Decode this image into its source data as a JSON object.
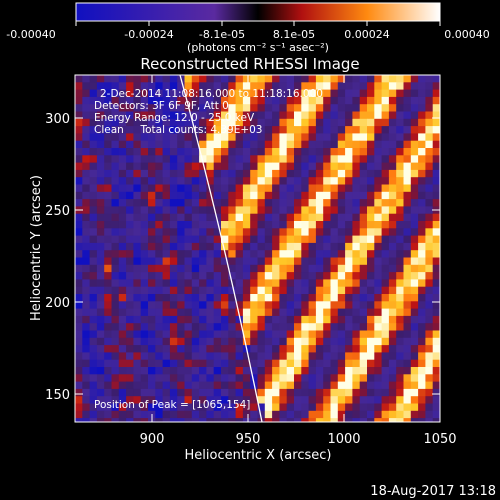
{
  "colorbar": {
    "tick_labels": [
      "-0.00040",
      "-0.00024",
      "-8.1e-05",
      "8.1e-05",
      "0.00024",
      "0.00040"
    ],
    "unit_label": "(photons cm⁻² s⁻¹ asec⁻²)",
    "range": [
      -0.0004,
      0.0004
    ]
  },
  "plot": {
    "title": "Reconstructed RHESSI Image",
    "xlabel": "Heliocentric X (arcsec)",
    "ylabel": "Heliocentric Y (arcsec)",
    "xlim": [
      860,
      1050
    ],
    "ylim": [
      133,
      322
    ],
    "x_ticks": [
      "900",
      "950",
      "1000",
      "1050"
    ],
    "y_ticks": [
      "150",
      "200",
      "250",
      "300"
    ],
    "annotations": {
      "time_range": "2-Dec-2014 11:08:16.000 to 11:18:16.000",
      "detectors": "Detectors: 3F 6F 9F, Att 0",
      "energy_range": "Energy Range: 12.0 - 25.0 keV",
      "clean": "Clean     Total counts: 4.39E+03",
      "peak": "Position of Peak = [1065,154]"
    }
  },
  "footer": {
    "timestamp": "18-Aug-2017 13:18"
  }
}
